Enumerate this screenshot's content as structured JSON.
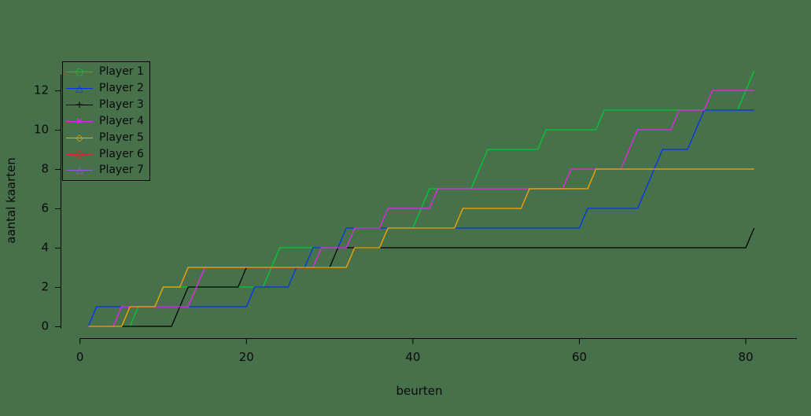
{
  "page": {
    "background_color": "#47714B",
    "axis_color": "#000000",
    "text_color": "#0a0a0a"
  },
  "chart_data": {
    "type": "line",
    "title": "",
    "xlabel": "beurten",
    "ylabel": "aantal kaarten",
    "xlim": [
      0,
      82
    ],
    "ylim": [
      0,
      13
    ],
    "x_ticks": [
      0,
      20,
      40,
      60,
      80
    ],
    "y_ticks": [
      0,
      2,
      4,
      6,
      8,
      10,
      12
    ],
    "grid": false,
    "legend_position": "top-left",
    "series": [
      {
        "name": "Player 1",
        "color": "#00CC33",
        "marker_glyph": "○",
        "points": [
          [
            1,
            0
          ],
          [
            6,
            0
          ],
          [
            7,
            1
          ],
          [
            9,
            1
          ],
          [
            10,
            2
          ],
          [
            22,
            2
          ],
          [
            23,
            3
          ],
          [
            24,
            4
          ],
          [
            32,
            4
          ],
          [
            33,
            5
          ],
          [
            40,
            5
          ],
          [
            41,
            6
          ],
          [
            42,
            7
          ],
          [
            47,
            7
          ],
          [
            48,
            8
          ],
          [
            49,
            9
          ],
          [
            55,
            9
          ],
          [
            56,
            10
          ],
          [
            62,
            10
          ],
          [
            63,
            11
          ],
          [
            79,
            11
          ],
          [
            80,
            12
          ],
          [
            81,
            13
          ]
        ]
      },
      {
        "name": "Player 2",
        "color": "#0033EE",
        "marker_glyph": "△",
        "points": [
          [
            1,
            0
          ],
          [
            2,
            1
          ],
          [
            20,
            1
          ],
          [
            21,
            2
          ],
          [
            25,
            2
          ],
          [
            26,
            3
          ],
          [
            27,
            3
          ],
          [
            28,
            4
          ],
          [
            31,
            4
          ],
          [
            32,
            5
          ],
          [
            60,
            5
          ],
          [
            61,
            6
          ],
          [
            67,
            6
          ],
          [
            68,
            7
          ],
          [
            69,
            8
          ],
          [
            70,
            9
          ],
          [
            73,
            9
          ],
          [
            74,
            10
          ],
          [
            75,
            11
          ],
          [
            81,
            11
          ]
        ]
      },
      {
        "name": "Player 3",
        "color": "#000000",
        "marker_glyph": "+",
        "points": [
          [
            1,
            0
          ],
          [
            11,
            0
          ],
          [
            12,
            1
          ],
          [
            13,
            2
          ],
          [
            19,
            2
          ],
          [
            20,
            3
          ],
          [
            30,
            3
          ],
          [
            31,
            4
          ],
          [
            80,
            4
          ],
          [
            81,
            5
          ]
        ]
      },
      {
        "name": "Player 4",
        "color": "#EE22EE",
        "marker_glyph": "×",
        "points": [
          [
            1,
            0
          ],
          [
            4,
            0
          ],
          [
            5,
            1
          ],
          [
            13,
            1
          ],
          [
            14,
            2
          ],
          [
            15,
            3
          ],
          [
            28,
            3
          ],
          [
            29,
            4
          ],
          [
            32,
            4
          ],
          [
            33,
            5
          ],
          [
            36,
            5
          ],
          [
            37,
            6
          ],
          [
            42,
            6
          ],
          [
            43,
            7
          ],
          [
            58,
            7
          ],
          [
            59,
            8
          ],
          [
            65,
            8
          ],
          [
            66,
            9
          ],
          [
            67,
            10
          ],
          [
            71,
            10
          ],
          [
            72,
            11
          ],
          [
            75,
            11
          ],
          [
            76,
            12
          ],
          [
            81,
            12
          ]
        ]
      },
      {
        "name": "Player 5",
        "color": "#FFA500",
        "marker_glyph": "◇",
        "points": [
          [
            1,
            0
          ],
          [
            5,
            0
          ],
          [
            6,
            1
          ],
          [
            9,
            1
          ],
          [
            10,
            2
          ],
          [
            12,
            2
          ],
          [
            13,
            3
          ],
          [
            32,
            3
          ],
          [
            33,
            4
          ],
          [
            36,
            4
          ],
          [
            37,
            5
          ],
          [
            45,
            5
          ],
          [
            46,
            6
          ],
          [
            53,
            6
          ],
          [
            54,
            7
          ],
          [
            61,
            7
          ],
          [
            62,
            8
          ],
          [
            81,
            8
          ]
        ]
      },
      {
        "name": "Player 6",
        "color": "#DD2222",
        "marker_glyph": "○",
        "points": []
      },
      {
        "name": "Player 7",
        "color": "#9955DD",
        "marker_glyph": "△",
        "points": []
      }
    ]
  }
}
